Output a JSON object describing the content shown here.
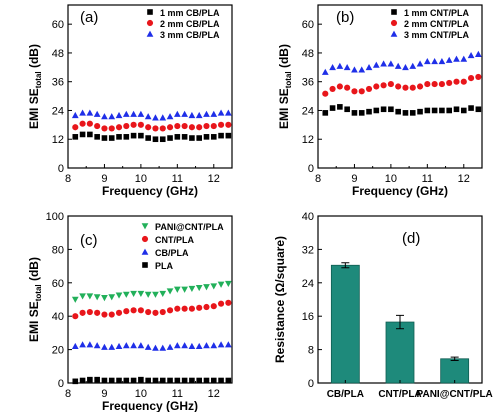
{
  "chart_data": [
    {
      "type": "scatter",
      "panel_label": "(a)",
      "xlabel": "Frequency (GHz)",
      "ylabel": "EMI SE",
      "ylabel_sub": "total",
      "ylabel_unit": " (dB)",
      "xlim": [
        8.0,
        12.5
      ],
      "ylim": [
        0,
        68
      ],
      "xticks": [
        8,
        9,
        10,
        11,
        12
      ],
      "yticks": [
        0,
        12,
        24,
        36,
        48,
        60
      ],
      "legend_position": "top-right",
      "series": [
        {
          "name": "1 mm CB/PLA",
          "marker": "square",
          "color": "#000000",
          "x": [
            8.2,
            8.4,
            8.6,
            8.8,
            9.0,
            9.2,
            9.4,
            9.6,
            9.8,
            10.0,
            10.2,
            10.4,
            10.6,
            10.8,
            11.0,
            11.2,
            11.4,
            11.6,
            11.8,
            12.0,
            12.2,
            12.4
          ],
          "y": [
            13,
            14,
            14,
            13,
            12.5,
            12.5,
            13,
            13,
            13.5,
            13.5,
            12.5,
            12,
            12,
            12.5,
            13,
            13,
            12.5,
            12.5,
            13,
            13,
            13.5,
            13.5
          ]
        },
        {
          "name": "2 mm CB/PLA",
          "marker": "circle",
          "color": "#e8161b",
          "x": [
            8.2,
            8.4,
            8.6,
            8.8,
            9.0,
            9.2,
            9.4,
            9.6,
            9.8,
            10.0,
            10.2,
            10.4,
            10.6,
            10.8,
            11.0,
            11.2,
            11.4,
            11.6,
            11.8,
            12.0,
            12.2,
            12.4
          ],
          "y": [
            17,
            18.5,
            18.5,
            17.5,
            16.5,
            16.5,
            17,
            17.5,
            18,
            18,
            17,
            16.5,
            16.5,
            17,
            17.5,
            17.5,
            17,
            17,
            17.5,
            17.5,
            18,
            18
          ]
        },
        {
          "name": "3 mm CB/PLA",
          "marker": "triangle",
          "color": "#1f2fe8",
          "x": [
            8.2,
            8.4,
            8.6,
            8.8,
            9.0,
            9.2,
            9.4,
            9.6,
            9.8,
            10.0,
            10.2,
            10.4,
            10.6,
            10.8,
            11.0,
            11.2,
            11.4,
            11.6,
            11.8,
            12.0,
            12.2,
            12.4
          ],
          "y": [
            22,
            23,
            23,
            22.5,
            21.5,
            21.5,
            22,
            22.5,
            22.5,
            22.5,
            21.5,
            21,
            21,
            21.5,
            22.5,
            22.5,
            22,
            22,
            22.5,
            22.5,
            23,
            23
          ]
        }
      ]
    },
    {
      "type": "scatter",
      "panel_label": "(b)",
      "xlabel": "Frequency (GHz)",
      "ylabel": "EMI SE",
      "ylabel_sub": "total",
      "ylabel_unit": " (dB)",
      "xlim": [
        8.0,
        12.5
      ],
      "ylim": [
        0,
        68
      ],
      "xticks": [
        8,
        9,
        10,
        11,
        12
      ],
      "yticks": [
        0,
        12,
        24,
        36,
        48,
        60
      ],
      "legend_position": "top-right",
      "series": [
        {
          "name": "1 mm CNT/PLA",
          "marker": "square",
          "color": "#000000",
          "x": [
            8.2,
            8.4,
            8.6,
            8.8,
            9.0,
            9.2,
            9.4,
            9.6,
            9.8,
            10.0,
            10.2,
            10.4,
            10.6,
            10.8,
            11.0,
            11.2,
            11.4,
            11.6,
            11.8,
            12.0,
            12.2,
            12.4
          ],
          "y": [
            23,
            25,
            25.5,
            24.5,
            23,
            23,
            23.5,
            24,
            24.5,
            24.5,
            23.5,
            23,
            23,
            23.5,
            24,
            24,
            24,
            24,
            24.5,
            24,
            25,
            24.5
          ]
        },
        {
          "name": "2 mm CNT/PLA",
          "marker": "circle",
          "color": "#e8161b",
          "x": [
            8.2,
            8.4,
            8.6,
            8.8,
            9.0,
            9.2,
            9.4,
            9.6,
            9.8,
            10.0,
            10.2,
            10.4,
            10.6,
            10.8,
            11.0,
            11.2,
            11.4,
            11.6,
            11.8,
            12.0,
            12.2,
            12.4
          ],
          "y": [
            31,
            33,
            34,
            33.5,
            32,
            32,
            33,
            34,
            34.5,
            35,
            34,
            33.5,
            33.5,
            34,
            35,
            35,
            35,
            35.5,
            36,
            36,
            37.5,
            38
          ]
        },
        {
          "name": "3 mm CNT/PLA",
          "marker": "triangle",
          "color": "#1f2fe8",
          "x": [
            8.2,
            8.4,
            8.6,
            8.8,
            9.0,
            9.2,
            9.4,
            9.6,
            9.8,
            10.0,
            10.2,
            10.4,
            10.6,
            10.8,
            11.0,
            11.2,
            11.4,
            11.6,
            11.8,
            12.0,
            12.2,
            12.4
          ],
          "y": [
            40,
            42,
            42.5,
            42,
            41,
            41,
            42,
            43,
            43.5,
            43.5,
            42.5,
            42,
            42.5,
            43.5,
            44.5,
            44.5,
            44.5,
            45,
            45.5,
            45.5,
            47,
            47.5
          ]
        }
      ]
    },
    {
      "type": "scatter",
      "panel_label": "(c)",
      "xlabel": "Frequency (GHz)",
      "ylabel": "EMI SE",
      "ylabel_sub": "total",
      "ylabel_unit": " (dB)",
      "xlim": [
        8.0,
        12.5
      ],
      "ylim": [
        0,
        100
      ],
      "xticks": [
        8,
        9,
        10,
        11,
        12
      ],
      "yticks": [
        0,
        20,
        40,
        60,
        80,
        100
      ],
      "legend_position": "top-left",
      "series": [
        {
          "name": "PANI@CNT/PLA",
          "marker": "triangle-down",
          "color": "#22b05a",
          "x": [
            8.2,
            8.4,
            8.6,
            8.8,
            9.0,
            9.2,
            9.4,
            9.6,
            9.8,
            10.0,
            10.2,
            10.4,
            10.6,
            10.8,
            11.0,
            11.2,
            11.4,
            11.6,
            11.8,
            12.0,
            12.2,
            12.4
          ],
          "y": [
            50,
            52,
            52,
            51.5,
            51,
            51.5,
            52.5,
            53,
            53.5,
            53.5,
            53,
            53,
            53.5,
            55,
            56,
            56,
            56.5,
            57,
            57.5,
            58,
            59,
            59.5
          ]
        },
        {
          "name": "CNT/PLA",
          "marker": "circle",
          "color": "#e8161b",
          "x": [
            8.2,
            8.4,
            8.6,
            8.8,
            9.0,
            9.2,
            9.4,
            9.6,
            9.8,
            10.0,
            10.2,
            10.4,
            10.6,
            10.8,
            11.0,
            11.2,
            11.4,
            11.6,
            11.8,
            12.0,
            12.2,
            12.4
          ],
          "y": [
            40,
            42,
            42.5,
            42,
            41,
            41,
            42,
            43,
            43.5,
            43.5,
            42.5,
            42,
            42.5,
            43.5,
            44.5,
            44.5,
            44.5,
            45,
            45.5,
            46,
            47.5,
            48
          ]
        },
        {
          "name": "CB/PLA",
          "marker": "triangle",
          "color": "#1f2fe8",
          "x": [
            8.2,
            8.4,
            8.6,
            8.8,
            9.0,
            9.2,
            9.4,
            9.6,
            9.8,
            10.0,
            10.2,
            10.4,
            10.6,
            10.8,
            11.0,
            11.2,
            11.4,
            11.6,
            11.8,
            12.0,
            12.2,
            12.4
          ],
          "y": [
            22,
            23,
            23,
            22.5,
            21.5,
            21.5,
            22,
            22.5,
            22.5,
            22.5,
            21.5,
            21,
            21,
            21.5,
            22.5,
            22.5,
            22,
            22,
            22.5,
            22.5,
            23,
            23
          ]
        },
        {
          "name": "PLA",
          "marker": "square",
          "color": "#000000",
          "x": [
            8.2,
            8.4,
            8.6,
            8.8,
            9.0,
            9.2,
            9.4,
            9.6,
            9.8,
            10.0,
            10.2,
            10.4,
            10.6,
            10.8,
            11.0,
            11.2,
            11.4,
            11.6,
            11.8,
            12.0,
            12.2,
            12.4
          ],
          "y": [
            1,
            1.5,
            2,
            2,
            1.5,
            1.5,
            1.5,
            1.5,
            1.5,
            2,
            1.5,
            1.5,
            1.5,
            1.5,
            1.5,
            1.5,
            1.5,
            1.5,
            1.5,
            1.5,
            1.5,
            1.5
          ]
        }
      ]
    },
    {
      "type": "bar",
      "panel_label": "(d)",
      "xlabel": "",
      "ylabel": "Resistance (Ω/square)",
      "ylim": [
        0,
        40
      ],
      "yticks": [
        0,
        8,
        16,
        24,
        32,
        40
      ],
      "bar_color": "#1e8a7b",
      "categories": [
        "CB/PLA",
        "CNT/PLA",
        "PANI@CNT/PLA"
      ],
      "values": [
        28.2,
        14.6,
        5.8
      ],
      "errors": [
        0.6,
        1.6,
        0.4
      ]
    }
  ]
}
